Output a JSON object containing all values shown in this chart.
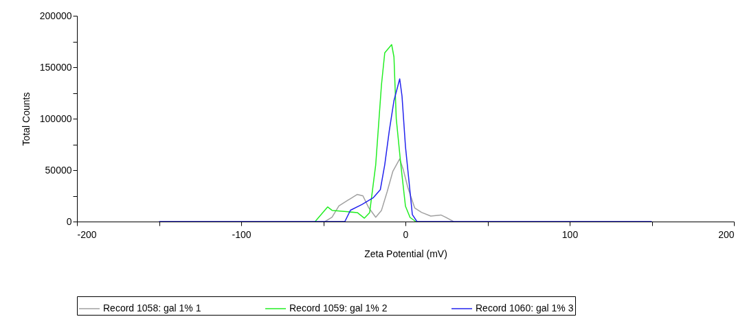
{
  "chart_data": {
    "type": "line",
    "xlabel": "Zeta Potential (mV)",
    "ylabel": "Total Counts",
    "xlim": [
      -200,
      200
    ],
    "ylim": [
      0,
      200000
    ],
    "xticks": [
      -200,
      {
        "value": -150,
        "label": null
      },
      -100,
      {
        "value": -50,
        "label": null
      },
      0,
      {
        "value": 50,
        "label": null
      },
      100,
      {
        "value": 150,
        "label": null
      },
      200
    ],
    "yticks": [
      0,
      {
        "value": 25000,
        "label": null
      },
      50000,
      {
        "value": 75000,
        "label": null
      },
      100000,
      {
        "value": 125000,
        "label": null
      },
      150000,
      {
        "value": 175000,
        "label": null
      },
      200000
    ],
    "grid": false,
    "legend": "bottom",
    "marker": "none",
    "line_style": "solid",
    "series": [
      {
        "name": "Record 1058: gal 1% 1",
        "color": "#a0a0a0",
        "x": [
          -49,
          -44.7,
          -40.5,
          -34.9,
          -29.3,
          -25.9,
          -22.3,
          -18.1,
          -14.6,
          -11.2,
          -7.7,
          -3.5,
          -1.4,
          1.4,
          5.6,
          9.8,
          15.4,
          21.6,
          24.4,
          29.3
        ],
        "values": [
          0,
          4200,
          15300,
          20900,
          26400,
          25000,
          13300,
          4200,
          10900,
          28700,
          48700,
          60900,
          50900,
          33300,
          13300,
          8900,
          5300,
          6400,
          4200,
          0
        ]
      },
      {
        "name": "Record 1059: gal 1% 2",
        "color": "#22ee22",
        "x": [
          -55,
          -47.4,
          -44.7,
          -29.3,
          -25,
          -21.8,
          -18.1,
          -14.6,
          -12.6,
          -8.4,
          -7,
          -5.6,
          -2.8,
          0,
          2.8,
          6.3
        ],
        "values": [
          0,
          14200,
          10900,
          8700,
          3300,
          8700,
          55300,
          133000,
          164000,
          172000,
          160000,
          100000,
          55000,
          15000,
          4000,
          0
        ]
      },
      {
        "name": "Record 1060: gal 1% 3",
        "color": "#2222ee",
        "x": [
          -150,
          -36.9,
          -33.5,
          -26.5,
          -19.5,
          -15.3,
          -12.6,
          -9.8,
          -7,
          -3.5,
          -2.1,
          0,
          2.8,
          4.2,
          7,
          150
        ],
        "values": [
          0,
          0,
          11000,
          16600,
          23300,
          31000,
          55300,
          88700,
          117500,
          138700,
          122000,
          73000,
          28900,
          6700,
          0,
          0
        ]
      }
    ]
  }
}
